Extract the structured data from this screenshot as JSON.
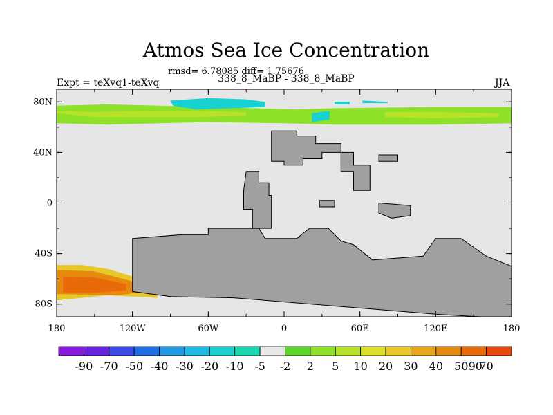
{
  "header": {
    "title": "Atmos Sea Ice Concentration",
    "subtitle": "rmsd= 6.78085 diff= 1.75676",
    "left_label": "Expt = teXvq1-teXvq",
    "center_label": "338_8_MaBP - 338_8_MaBP",
    "right_label": "JJA"
  },
  "chart_data": {
    "type": "heatmap",
    "title": "Atmos Sea Ice Concentration",
    "xlim": [
      -180,
      180
    ],
    "ylim": [
      -90,
      90
    ],
    "x_ticks": [
      {
        "value": -180,
        "label": "180"
      },
      {
        "value": -120,
        "label": "120W"
      },
      {
        "value": -60,
        "label": "60W"
      },
      {
        "value": 0,
        "label": "0"
      },
      {
        "value": 60,
        "label": "60E"
      },
      {
        "value": 120,
        "label": "120E"
      },
      {
        "value": 180,
        "label": "180"
      }
    ],
    "y_ticks": [
      {
        "value": 80,
        "label": "80N"
      },
      {
        "value": 40,
        "label": "40N"
      },
      {
        "value": 0,
        "label": "0"
      },
      {
        "value": -40,
        "label": "40S"
      },
      {
        "value": -80,
        "label": "80S"
      }
    ],
    "colorbar": {
      "colors": [
        "#8a1ae0",
        "#6a22e0",
        "#3a4ae6",
        "#1e6ee6",
        "#1e9ae6",
        "#1ebae6",
        "#18d2d2",
        "#18d8b0",
        "#e8e8e8",
        "#5cd42a",
        "#8ee028",
        "#b6e228",
        "#dce028",
        "#e8c828",
        "#e8a618",
        "#e88a10",
        "#e86a08",
        "#e84808"
      ],
      "labels": [
        "-90",
        "-70",
        "-50",
        "-40",
        "-30",
        "-20",
        "-10",
        "-5",
        "-2",
        "2",
        "5",
        "10",
        "20",
        "30",
        "40",
        "50",
        "70",
        "90"
      ]
    },
    "background_color": "#e6e6e6",
    "land_color": "#a0a0a0",
    "regions": [
      {
        "name": "arctic-band-outer",
        "level": "5-10",
        "color": "#8ee028",
        "lon": [
          -180,
          -180,
          -140,
          -60,
          0,
          40,
          120,
          180,
          180,
          120,
          40,
          10,
          -60,
          -140
        ],
        "lat": [
          77,
          63,
          62,
          64,
          63,
          62,
          62,
          63,
          76,
          76,
          75,
          74,
          76,
          78
        ]
      },
      {
        "name": "arctic-band-inner",
        "level": "10-20",
        "color": "#b6e228",
        "lon": [
          -180,
          -150,
          -110,
          -70,
          -30,
          -30,
          -70,
          -110,
          -150,
          -180
        ],
        "lat": [
          71,
          68,
          68,
          68,
          69,
          72,
          73,
          73,
          72,
          73
        ]
      },
      {
        "name": "arctic-band-east-inner",
        "level": "10-20",
        "color": "#b6e228",
        "lon": [
          80,
          120,
          170,
          170,
          120,
          80
        ],
        "lat": [
          68,
          67,
          68,
          71,
          72,
          72
        ]
      },
      {
        "name": "arctic-negative-1",
        "level": "-5 to -10",
        "color": "#18d2d2",
        "lon": [
          -90,
          -60,
          -30,
          -15,
          -15,
          -40,
          -70,
          -88
        ],
        "lat": [
          81,
          83,
          82,
          80,
          76,
          75,
          74,
          77
        ]
      },
      {
        "name": "arctic-negative-2",
        "level": "-5 to -10",
        "color": "#18d2d2",
        "lon": [
          22,
          36,
          36,
          22
        ],
        "lat": [
          71,
          73,
          66,
          64
        ]
      },
      {
        "name": "arctic-negative-3",
        "level": "-5 to -10",
        "color": "#18d2d2",
        "lon": [
          40,
          52,
          52,
          40
        ],
        "lat": [
          80,
          80,
          78,
          78
        ]
      },
      {
        "name": "arctic-negative-4",
        "level": "-5 to -10",
        "color": "#18d2d2",
        "lon": [
          62,
          82,
          82,
          62
        ],
        "lat": [
          81,
          80,
          79,
          79
        ]
      },
      {
        "name": "south-band-outer",
        "level": "30-40",
        "color": "#e8c828",
        "lon": [
          -180,
          -160,
          -140,
          -120,
          -100,
          -100,
          -140,
          -180
        ],
        "lat": [
          -49,
          -49,
          -52,
          -58,
          -64,
          -75,
          -73,
          -77
        ]
      },
      {
        "name": "south-band-mid",
        "level": "50-70",
        "color": "#e88a10",
        "lon": [
          -180,
          -150,
          -120,
          -110,
          -130,
          -180
        ],
        "lat": [
          -53,
          -54,
          -62,
          -70,
          -73,
          -72
        ]
      },
      {
        "name": "south-band-core",
        "level": "70-90",
        "color": "#e86a08",
        "lon": [
          -175,
          -150,
          -125,
          -125,
          -150,
          -175
        ],
        "lat": [
          -58,
          -59,
          -64,
          -69,
          -71,
          -71
        ]
      },
      {
        "name": "weddell-band-outer",
        "level": "20-30",
        "color": "#dce028",
        "lon": [
          -70,
          -40,
          -40,
          -70
        ],
        "lat": [
          -56,
          -58,
          -67,
          -70
        ]
      },
      {
        "name": "weddell-band-core",
        "level": "30-40",
        "color": "#e8c828",
        "lon": [
          -65,
          -42,
          -42,
          -65
        ],
        "lat": [
          -60,
          -61,
          -64,
          -66
        ]
      },
      {
        "name": "indian-band",
        "level": "10-20",
        "color": "#b6e228",
        "lon": [
          70,
          90,
          100,
          100,
          85,
          75
        ],
        "lat": [
          -46,
          -46,
          -49,
          -54,
          -55,
          -52
        ]
      },
      {
        "name": "east-band-outer",
        "level": "20-30",
        "color": "#dce028",
        "lon": [
          160,
          180,
          180,
          172,
          165,
          160
        ],
        "lat": [
          -49,
          -49,
          -70,
          -70,
          -60,
          -52
        ]
      },
      {
        "name": "east-band-core",
        "level": "40-50",
        "color": "#e8a618",
        "lon": [
          168,
          180,
          180,
          170
        ],
        "lat": [
          -55,
          -55,
          -66,
          -64
        ]
      },
      {
        "name": "east-negative-spot",
        "level": "-20 to -30",
        "color": "#1e9ae6",
        "lon": [
          150,
          160,
          160,
          150
        ],
        "lat": [
          -46,
          -46,
          -52,
          -52
        ]
      }
    ],
    "land": [
      {
        "name": "land-north-america",
        "lon": [
          -10,
          10,
          10,
          25,
          25,
          45,
          45,
          30,
          30,
          15,
          15,
          0,
          0,
          -10
        ],
        "lat": [
          57,
          57,
          53,
          53,
          47,
          47,
          40,
          40,
          35,
          35,
          30,
          30,
          33,
          33
        ]
      },
      {
        "name": "land-south-america",
        "lon": [
          -30,
          -20,
          -20,
          -12,
          -12,
          -10,
          -10,
          -25,
          -25,
          -32,
          -32
        ],
        "lat": [
          25,
          25,
          16,
          16,
          6,
          6,
          -20,
          -20,
          -5,
          -5,
          10
        ]
      },
      {
        "name": "land-antarctic-continent",
        "lon": [
          -120,
          -80,
          -60,
          -60,
          -20,
          -15,
          10,
          20,
          35,
          45,
          55,
          70,
          110,
          120,
          140,
          150,
          160,
          180,
          180,
          155,
          120,
          -40,
          -90,
          -120
        ],
        "lat": [
          -28,
          -25,
          -25,
          -20,
          -20,
          -28,
          -28,
          -20,
          -20,
          -30,
          -33,
          -45,
          -42,
          -28,
          -28,
          -35,
          -42,
          -50,
          -90,
          -90,
          -88,
          -75,
          -74,
          -70
        ]
      },
      {
        "name": "land-east-asia",
        "lon": [
          45,
          55,
          55,
          68,
          68,
          55,
          55,
          45
        ],
        "lat": [
          40,
          40,
          30,
          30,
          10,
          10,
          25,
          25
        ]
      },
      {
        "name": "land-island-1",
        "lon": [
          75,
          100,
          100,
          85,
          75
        ],
        "lat": [
          0,
          -2,
          -10,
          -12,
          -8
        ]
      },
      {
        "name": "land-island-2",
        "lon": [
          28,
          40,
          40,
          28
        ],
        "lat": [
          2,
          2,
          -3,
          -3
        ]
      },
      {
        "name": "land-island-3",
        "lon": [
          75,
          90,
          90,
          75
        ],
        "lat": [
          38,
          38,
          33,
          33
        ]
      }
    ]
  }
}
